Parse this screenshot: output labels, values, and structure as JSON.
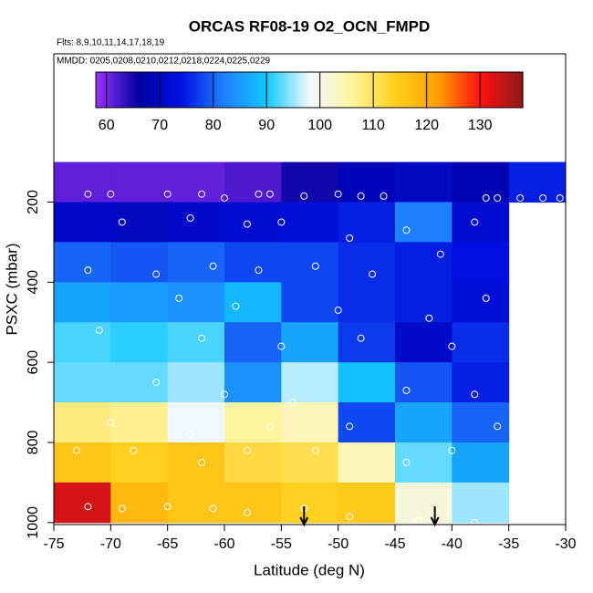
{
  "chart_data": {
    "type": "heatmap",
    "title": "ORCAS RF08-19 O2_OCN_FMPD",
    "subtitle": "Flts: 8,9,10,11,14,17,18,19",
    "note": "MMDD: 0205,0208,0210,0212,0218,0224,0225,0229",
    "x_label": "Latitude (deg N)",
    "y_label": "PSXC (mbar)",
    "xlim": [
      -75,
      -30
    ],
    "ylim": [
      1005,
      -170
    ],
    "xticks": [
      -75,
      -70,
      -65,
      -60,
      -55,
      -50,
      -45,
      -40,
      -35,
      -30
    ],
    "yticks": [
      200,
      400,
      600,
      800,
      1000
    ],
    "x_bins": [
      -75,
      -70,
      -65,
      -60,
      -55,
      -50,
      -45,
      -40,
      -35,
      -30
    ],
    "y_bins": [
      100,
      200,
      300,
      400,
      500,
      600,
      700,
      800,
      900,
      1000
    ],
    "values": [
      [
        61,
        61,
        61,
        62,
        65,
        69,
        70,
        68,
        75
      ],
      [
        71,
        70,
        71,
        72,
        73,
        75,
        82,
        72,
        null
      ],
      [
        80,
        79,
        80,
        78,
        78,
        76,
        75,
        74,
        null
      ],
      [
        86,
        85,
        84,
        88,
        78,
        76,
        75,
        73,
        null
      ],
      [
        92,
        91,
        92,
        80,
        86,
        77,
        71,
        76,
        null
      ],
      [
        93,
        93,
        95,
        84,
        96,
        89,
        79,
        75,
        null
      ],
      [
        108,
        107,
        98,
        106,
        104,
        78,
        86,
        80,
        null
      ],
      [
        116,
        114,
        116,
        112,
        111,
        104,
        93,
        86,
        null
      ],
      [
        133,
        118,
        116,
        116,
        114,
        115,
        101,
        95,
        null
      ]
    ],
    "clim": [
      58,
      138
    ],
    "cticks": [
      60,
      70,
      80,
      90,
      100,
      110,
      120,
      130
    ],
    "colorscale": [
      "#9b30ff",
      "#0000a0",
      "#0010e0",
      "#1e80ff",
      "#10c8ff",
      "#f0f8ff",
      "#fff4a0",
      "#ffd020",
      "#ffa000",
      "#ff1010",
      "#8b1a1a"
    ],
    "points": {
      "x": [
        -72,
        -70,
        -65,
        -62,
        -60,
        -57,
        -56,
        -53,
        -50,
        -48,
        -46,
        -37,
        -36,
        -34,
        -32,
        -30.5,
        -69,
        -63,
        -58,
        -55,
        -49,
        -44,
        -38,
        -72,
        -66,
        -61,
        -57,
        -52,
        -47,
        -41,
        -64,
        -59,
        -50,
        -42,
        -37,
        -71,
        -62,
        -55,
        -48,
        -40,
        -66,
        -60,
        -54,
        -44,
        -38,
        -70,
        -63,
        -56,
        -49,
        -36,
        -73,
        -68,
        -62,
        -58,
        -52,
        -44,
        -40,
        -72,
        -69,
        -65,
        -61,
        -58,
        -53,
        -49,
        -43,
        -38
      ],
      "y": [
        180,
        180,
        180,
        180,
        190,
        180,
        180,
        185,
        180,
        185,
        185,
        190,
        190,
        190,
        190,
        190,
        250,
        240,
        255,
        250,
        290,
        270,
        250,
        370,
        380,
        360,
        370,
        360,
        380,
        330,
        440,
        460,
        470,
        490,
        440,
        520,
        540,
        560,
        540,
        560,
        650,
        680,
        700,
        670,
        680,
        750,
        780,
        760,
        760,
        760,
        820,
        820,
        850,
        820,
        820,
        850,
        820,
        960,
        965,
        960,
        965,
        975,
        965,
        985,
        995,
        1000
      ]
    },
    "arrows_x": [
      -53,
      -41.5
    ]
  }
}
